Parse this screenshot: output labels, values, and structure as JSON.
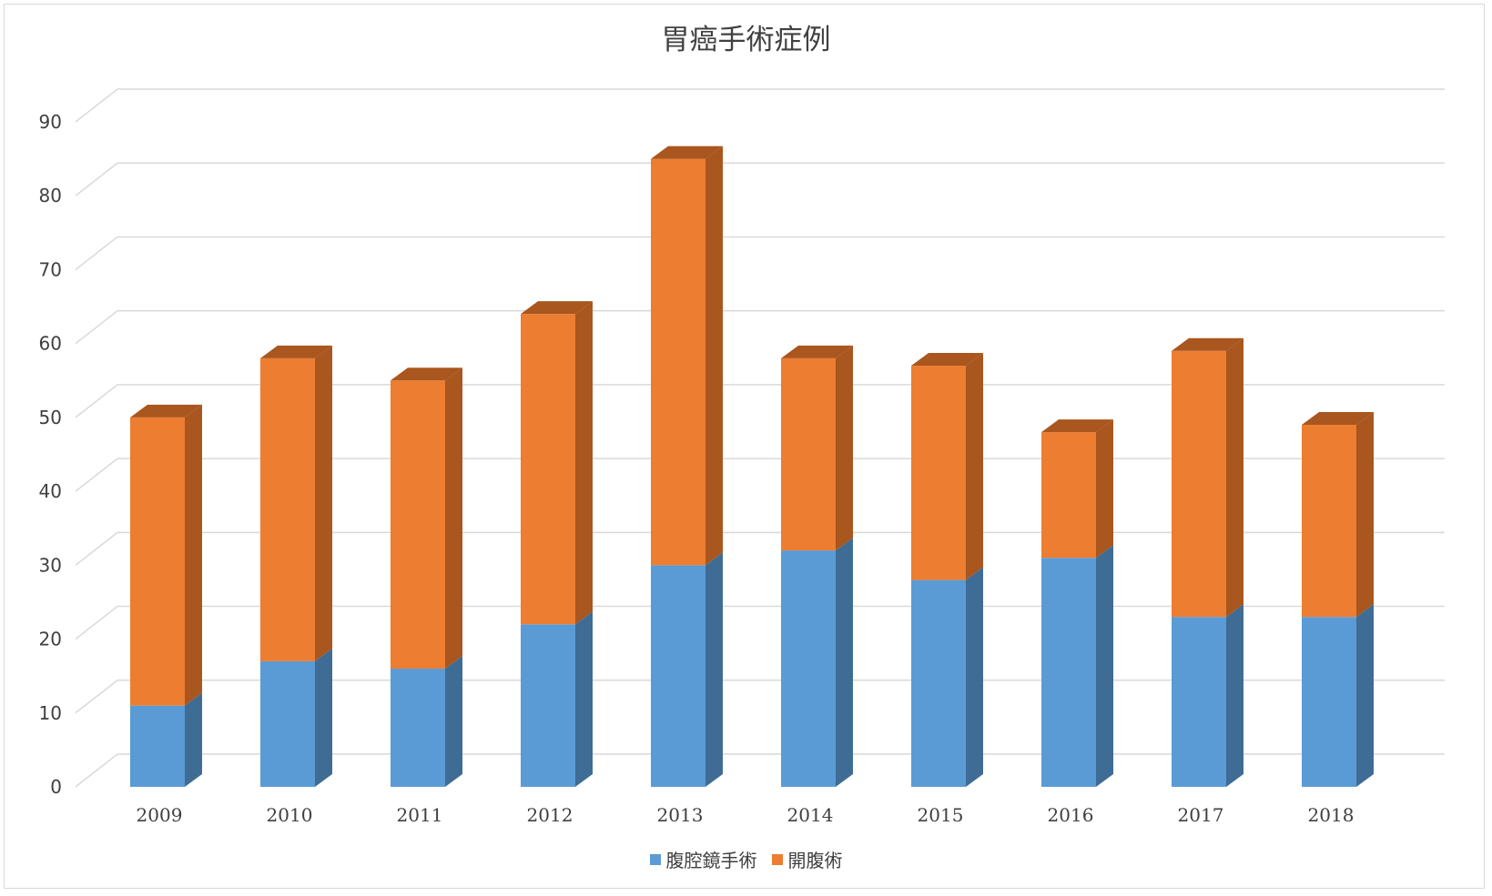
{
  "chart_data": {
    "type": "bar",
    "stacked": true,
    "three_d": true,
    "title": "胃癌手術症例",
    "categories": [
      "2009",
      "2010",
      "2011",
      "2012",
      "2013",
      "2014",
      "2015",
      "2016",
      "2017",
      "2018"
    ],
    "series": [
      {
        "name": "腹腔鏡手術",
        "color": "#5b9bd5",
        "side_color": "#3e6c95",
        "values": [
          11,
          17,
          16,
          22,
          30,
          32,
          28,
          31,
          23,
          23
        ]
      },
      {
        "name": "開腹術",
        "color": "#ed7d31",
        "side_color": "#a9561f",
        "values": [
          39,
          41,
          39,
          42,
          55,
          26,
          29,
          17,
          36,
          26
        ]
      }
    ],
    "ylim": [
      0,
      90
    ],
    "yticks": [
      "0",
      "10",
      "20",
      "30",
      "40",
      "50",
      "60",
      "70",
      "80",
      "90"
    ],
    "grid": true,
    "legend_position": "bottom"
  }
}
